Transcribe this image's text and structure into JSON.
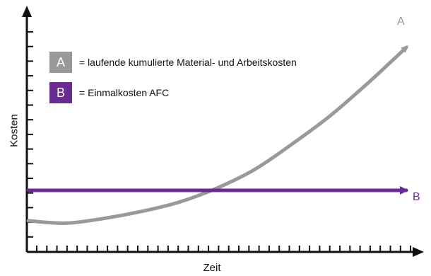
{
  "chart_data": {
    "type": "line",
    "title": "",
    "xlabel": "Zeit",
    "ylabel": "Kosten",
    "xlim": [
      0,
      1
    ],
    "ylim": [
      0,
      1
    ],
    "grid": false,
    "legend_placement": "top-left",
    "series": [
      {
        "name": "A",
        "legend_text": "= laufende kumulierte Material- und Arbeitskosten",
        "color": "#999999",
        "x": [
          0.0,
          0.1,
          0.2,
          0.3,
          0.4,
          0.5,
          0.6,
          0.7,
          0.8,
          0.9,
          1.0
        ],
        "y": [
          0.13,
          0.12,
          0.14,
          0.17,
          0.21,
          0.27,
          0.35,
          0.46,
          0.58,
          0.72,
          0.87
        ]
      },
      {
        "name": "B",
        "legend_text": "= Einmalkosten AFC",
        "color": "#6a2c91",
        "x": [
          0.0,
          1.0
        ],
        "y": [
          0.26,
          0.26
        ]
      }
    ]
  }
}
